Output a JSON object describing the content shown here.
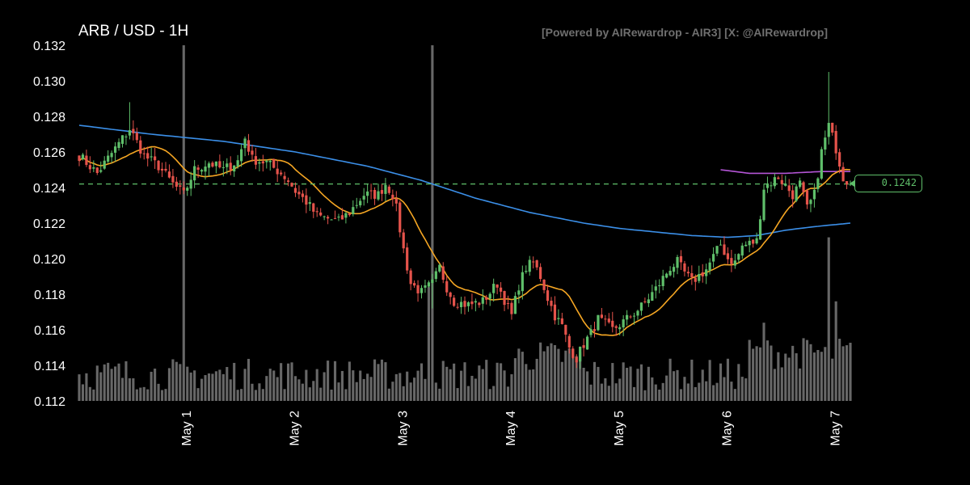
{
  "title": "ARB / USD - 1H",
  "watermark": "[Powered by AIRewardrop - AIR3] [X: @AIRewardrop]",
  "current_price_label": "0.1242",
  "chart_data": {
    "type": "candlestick",
    "title": "ARB / USD - 1H",
    "interval": "1H",
    "ylim": [
      0.112,
      0.132
    ],
    "y_ticks": [
      "0.112",
      "0.114",
      "0.116",
      "0.118",
      "0.120",
      "0.122",
      "0.124",
      "0.126",
      "0.128",
      "0.130",
      "0.132"
    ],
    "x_ticks": [
      {
        "label": "May 1",
        "index": 30
      },
      {
        "label": "May 2",
        "index": 60
      },
      {
        "label": "May 3",
        "index": 90
      },
      {
        "label": "May 4",
        "index": 120
      },
      {
        "label": "May 5",
        "index": 150
      },
      {
        "label": "May 6",
        "index": 180
      },
      {
        "label": "May 7",
        "index": 210
      }
    ],
    "current_price": 0.1242,
    "current_price_line_color": "#5fbf6a",
    "colors": {
      "up": "#5fbf6a",
      "down": "#e5534b",
      "volume": "#8a8a8a",
      "ma_short": "#f5a623",
      "ma_mid": "#b455d6",
      "ma_long": "#3b8fe8",
      "grid": "none",
      "background": "#000000"
    },
    "anchors": [
      [
        0,
        0.1258
      ],
      [
        5,
        0.1248
      ],
      [
        10,
        0.1262
      ],
      [
        14,
        0.1273
      ],
      [
        18,
        0.1258
      ],
      [
        22,
        0.1252
      ],
      [
        26,
        0.1242
      ],
      [
        29,
        0.1236
      ],
      [
        32,
        0.125
      ],
      [
        36,
        0.1254
      ],
      [
        40,
        0.125
      ],
      [
        44,
        0.1255
      ],
      [
        46,
        0.1268
      ],
      [
        48,
        0.1256
      ],
      [
        52,
        0.1254
      ],
      [
        56,
        0.1248
      ],
      [
        58,
        0.1244
      ],
      [
        60,
        0.1238
      ],
      [
        63,
        0.1232
      ],
      [
        66,
        0.1224
      ],
      [
        70,
        0.1222
      ],
      [
        72,
        0.1221
      ],
      [
        75,
        0.1226
      ],
      [
        79,
        0.1236
      ],
      [
        83,
        0.1236
      ],
      [
        85,
        0.1242
      ],
      [
        87,
        0.1236
      ],
      [
        88,
        0.1228
      ],
      [
        90,
        0.1205
      ],
      [
        92,
        0.1186
      ],
      [
        95,
        0.1181
      ],
      [
        98,
        0.1186
      ],
      [
        100,
        0.1195
      ],
      [
        102,
        0.1184
      ],
      [
        104,
        0.1176
      ],
      [
        108,
        0.1174
      ],
      [
        112,
        0.1176
      ],
      [
        114,
        0.1181
      ],
      [
        116,
        0.1186
      ],
      [
        118,
        0.1177
      ],
      [
        120,
        0.1168
      ],
      [
        122,
        0.1185
      ],
      [
        124,
        0.1195
      ],
      [
        126,
        0.1198
      ],
      [
        128,
        0.119
      ],
      [
        130,
        0.1178
      ],
      [
        132,
        0.1168
      ],
      [
        134,
        0.1162
      ],
      [
        136,
        0.115
      ],
      [
        138,
        0.1144
      ],
      [
        140,
        0.1152
      ],
      [
        142,
        0.1158
      ],
      [
        144,
        0.1166
      ],
      [
        146,
        0.1163
      ],
      [
        148,
        0.116
      ],
      [
        152,
        0.1166
      ],
      [
        156,
        0.1173
      ],
      [
        160,
        0.1183
      ],
      [
        164,
        0.1195
      ],
      [
        166,
        0.1198
      ],
      [
        168,
        0.1192
      ],
      [
        170,
        0.1187
      ],
      [
        174,
        0.1194
      ],
      [
        178,
        0.1208
      ],
      [
        180,
        0.12
      ],
      [
        182,
        0.1198
      ],
      [
        184,
        0.1207
      ],
      [
        188,
        0.121
      ],
      [
        190,
        0.124
      ],
      [
        194,
        0.1246
      ],
      [
        198,
        0.1236
      ],
      [
        200,
        0.1242
      ],
      [
        202,
        0.1228
      ],
      [
        204,
        0.1236
      ],
      [
        206,
        0.126
      ],
      [
        208,
        0.1275
      ],
      [
        210,
        0.1262
      ],
      [
        212,
        0.1246
      ],
      [
        214,
        0.1242
      ]
    ],
    "volume_spikes": [
      {
        "index": 29,
        "volume": 1.0
      },
      {
        "index": 98,
        "volume": 1.0
      },
      {
        "index": 97,
        "volume": 0.32
      },
      {
        "index": 208,
        "volume": 0.46
      },
      {
        "index": 210,
        "volume": 0.28
      },
      {
        "index": 190,
        "volume": 0.22
      }
    ],
    "ma_long": [
      [
        0,
        0.1275
      ],
      [
        20,
        0.127
      ],
      [
        40,
        0.1266
      ],
      [
        60,
        0.126
      ],
      [
        80,
        0.1252
      ],
      [
        95,
        0.1244
      ],
      [
        110,
        0.1234
      ],
      [
        125,
        0.1226
      ],
      [
        140,
        0.122
      ],
      [
        150,
        0.1217
      ],
      [
        160,
        0.1215
      ],
      [
        170,
        0.1213
      ],
      [
        180,
        0.1212
      ],
      [
        188,
        0.1213
      ],
      [
        196,
        0.1216
      ],
      [
        204,
        0.1218
      ],
      [
        214,
        0.122
      ]
    ],
    "ma_mid": [
      [
        178,
        0.125
      ],
      [
        186,
        0.1248
      ],
      [
        196,
        0.1248
      ],
      [
        206,
        0.1249
      ],
      [
        214,
        0.1249
      ]
    ],
    "ma_short_period": 14,
    "bar_count": 215
  }
}
